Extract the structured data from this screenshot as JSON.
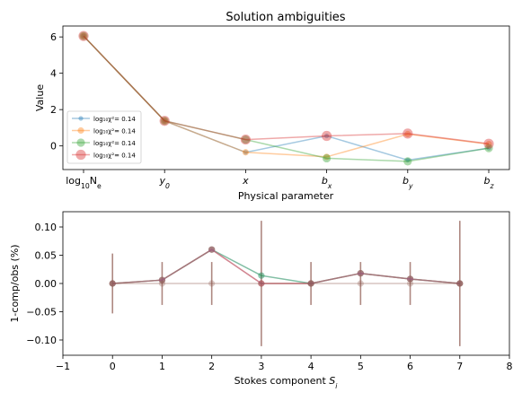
{
  "chart_data": [
    {
      "type": "line",
      "title": "Solution ambiguities",
      "xlabel": "Physical parameter",
      "ylabel": "Value",
      "categories": [
        "log₁₀Nₑ",
        "y₀",
        "x",
        "bₓ",
        "bᵧ",
        "b_z"
      ],
      "category_tex": [
        {
          "base": "log",
          "sub": "10",
          "tail": "N",
          "tailsub": "e"
        },
        {
          "base": "y",
          "sub": "0"
        },
        {
          "base": "x"
        },
        {
          "base": "b",
          "sub": "x"
        },
        {
          "base": "b",
          "sub": "y"
        },
        {
          "base": "b",
          "sub": "z"
        }
      ],
      "ylim": [
        -1.3,
        6.6
      ],
      "yticks": [
        0,
        2,
        4,
        6
      ],
      "legend_placement": "lower-left",
      "legend_label": "log₁₀χ²= 0.14",
      "series": [
        {
          "name": "log₁₀χ²= 0.14",
          "color": "#1f77b4",
          "marker_size": "small",
          "values": [
            6.05,
            1.38,
            -0.35,
            0.55,
            -0.78,
            -0.12
          ]
        },
        {
          "name": "log₁₀χ²= 0.14",
          "color": "#ff7f0e",
          "marker_size": "medium",
          "values": [
            6.05,
            1.38,
            -0.35,
            -0.6,
            0.65,
            0.1
          ]
        },
        {
          "name": "log₁₀χ²= 0.14",
          "color": "#2ca02c",
          "marker_size": "large",
          "values": [
            6.05,
            1.38,
            0.35,
            -0.68,
            -0.85,
            -0.12
          ]
        },
        {
          "name": "log₁₀χ²= 0.14",
          "color": "#d62728",
          "marker_size": "xlarge",
          "values": [
            6.05,
            1.38,
            0.35,
            0.55,
            0.68,
            0.12
          ]
        }
      ]
    },
    {
      "type": "line",
      "title": "",
      "xlabel": "Stokes component Sᵢ",
      "xlabel_tex": {
        "base": "Stokes component S",
        "sub": "i"
      },
      "ylabel": "1-comp/obs (%)",
      "xlim": [
        -1,
        8
      ],
      "xticks": [
        -1,
        0,
        1,
        2,
        3,
        4,
        5,
        6,
        7,
        8
      ],
      "ylim": [
        -0.127,
        0.127
      ],
      "yticks": [
        -0.1,
        -0.05,
        0.0,
        0.05,
        0.1
      ],
      "x": [
        0,
        1,
        2,
        3,
        4,
        5,
        6,
        7
      ],
      "error_bars": [
        0.053,
        0.038,
        0.038,
        0.111,
        0.038,
        0.038,
        0.038,
        0.111
      ],
      "error_color": "#8c564b",
      "series": [
        {
          "color": "#1f77b4",
          "values": [
            0.0,
            0.006,
            0.06,
            0.014,
            0.0,
            0.018,
            0.008,
            0.0
          ]
        },
        {
          "color": "#ff7f0e",
          "values": [
            0.0,
            0.006,
            0.06,
            0.0,
            0.0,
            0.018,
            0.008,
            0.0
          ]
        },
        {
          "color": "#2ca02c",
          "values": [
            0.0,
            0.006,
            0.06,
            0.014,
            0.0,
            0.018,
            0.008,
            0.0
          ]
        },
        {
          "color": "#d62728",
          "values": [
            0.0,
            0.006,
            0.06,
            0.0,
            0.0,
            0.018,
            0.008,
            0.0
          ]
        },
        {
          "color": "#9467bd",
          "values": [
            0.0,
            0.006,
            0.06,
            0.0,
            0.0,
            0.018,
            0.008,
            0.0
          ]
        },
        {
          "color": "#8c564b",
          "values": [
            0.0,
            0.0,
            0.0,
            0.0,
            0.0,
            0.0,
            0.0,
            0.0
          ]
        }
      ]
    }
  ]
}
